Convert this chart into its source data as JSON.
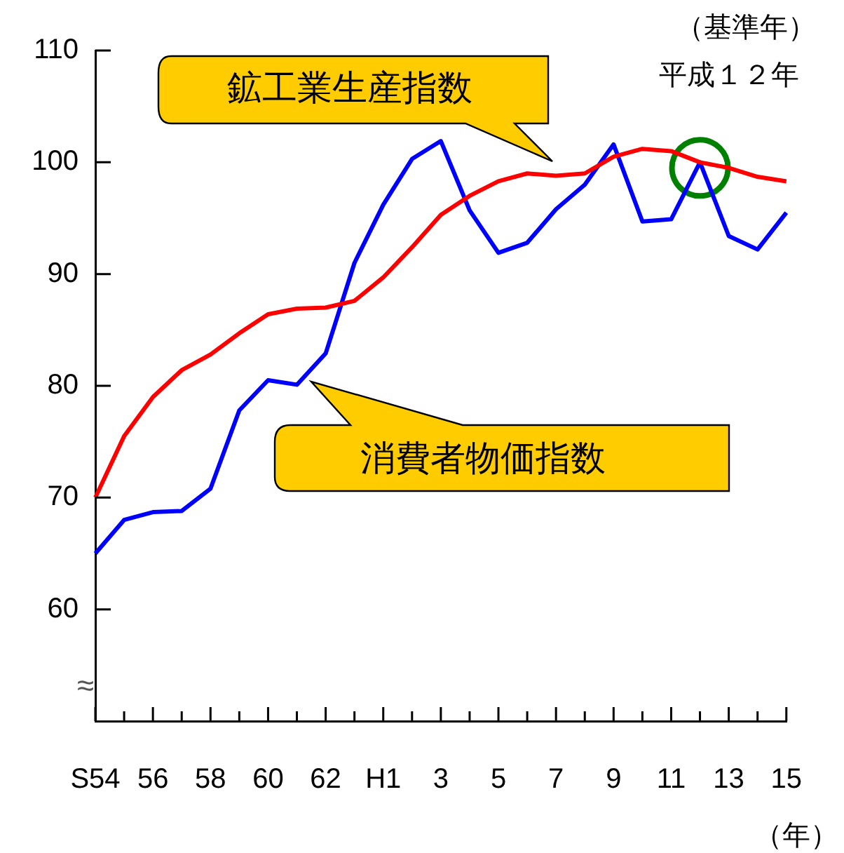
{
  "chart_data": {
    "type": "line",
    "categories": [
      "S54",
      null,
      "56",
      null,
      "58",
      null,
      "60",
      null,
      "62",
      null,
      "H1",
      null,
      "3",
      null,
      "5",
      null,
      "7",
      null,
      "9",
      null,
      "11",
      null,
      "13",
      null,
      "15"
    ],
    "series": [
      {
        "color": "#ff0000",
        "values": [
          70,
          75.5,
          79,
          81.4,
          82.8,
          84.7,
          86.4,
          86.9,
          87,
          87.6,
          89.7,
          92.4,
          95.3,
          97,
          98.3,
          99,
          98.8,
          99,
          100.5,
          101.2,
          101,
          100,
          99.5,
          98.7,
          98.3
        ]
      },
      {
        "color": "#0000ff",
        "values": [
          65,
          68,
          68.7,
          68.8,
          70.8,
          77.8,
          80.5,
          80.1,
          82.9,
          91,
          96.2,
          100.3,
          101.9,
          95.7,
          91.9,
          92.8,
          95.8,
          98,
          101.6,
          94.7,
          94.9,
          100,
          93.4,
          92.2,
          95.5
        ]
      },
      {
        "type": "scatter",
        "marker": "circle",
        "color": "#008000",
        "values": [
          null,
          null,
          null,
          null,
          null,
          null,
          null,
          null,
          null,
          null,
          null,
          null,
          null,
          null,
          null,
          null,
          null,
          null,
          null,
          null,
          null,
          99.5,
          null,
          null,
          null
        ]
      }
    ],
    "ylim": [
      50,
      110
    ],
    "yticks": [
      60,
      70,
      80,
      90,
      100,
      110
    ],
    "xlabel": "（年）",
    "annotations": [
      "鉱工業生産指数",
      "消費者物価指数",
      "（基準年）",
      "平成１２年",
      "≈"
    ],
    "grid": false,
    "legend": false,
    "marker": "none",
    "line_style": "solid"
  }
}
